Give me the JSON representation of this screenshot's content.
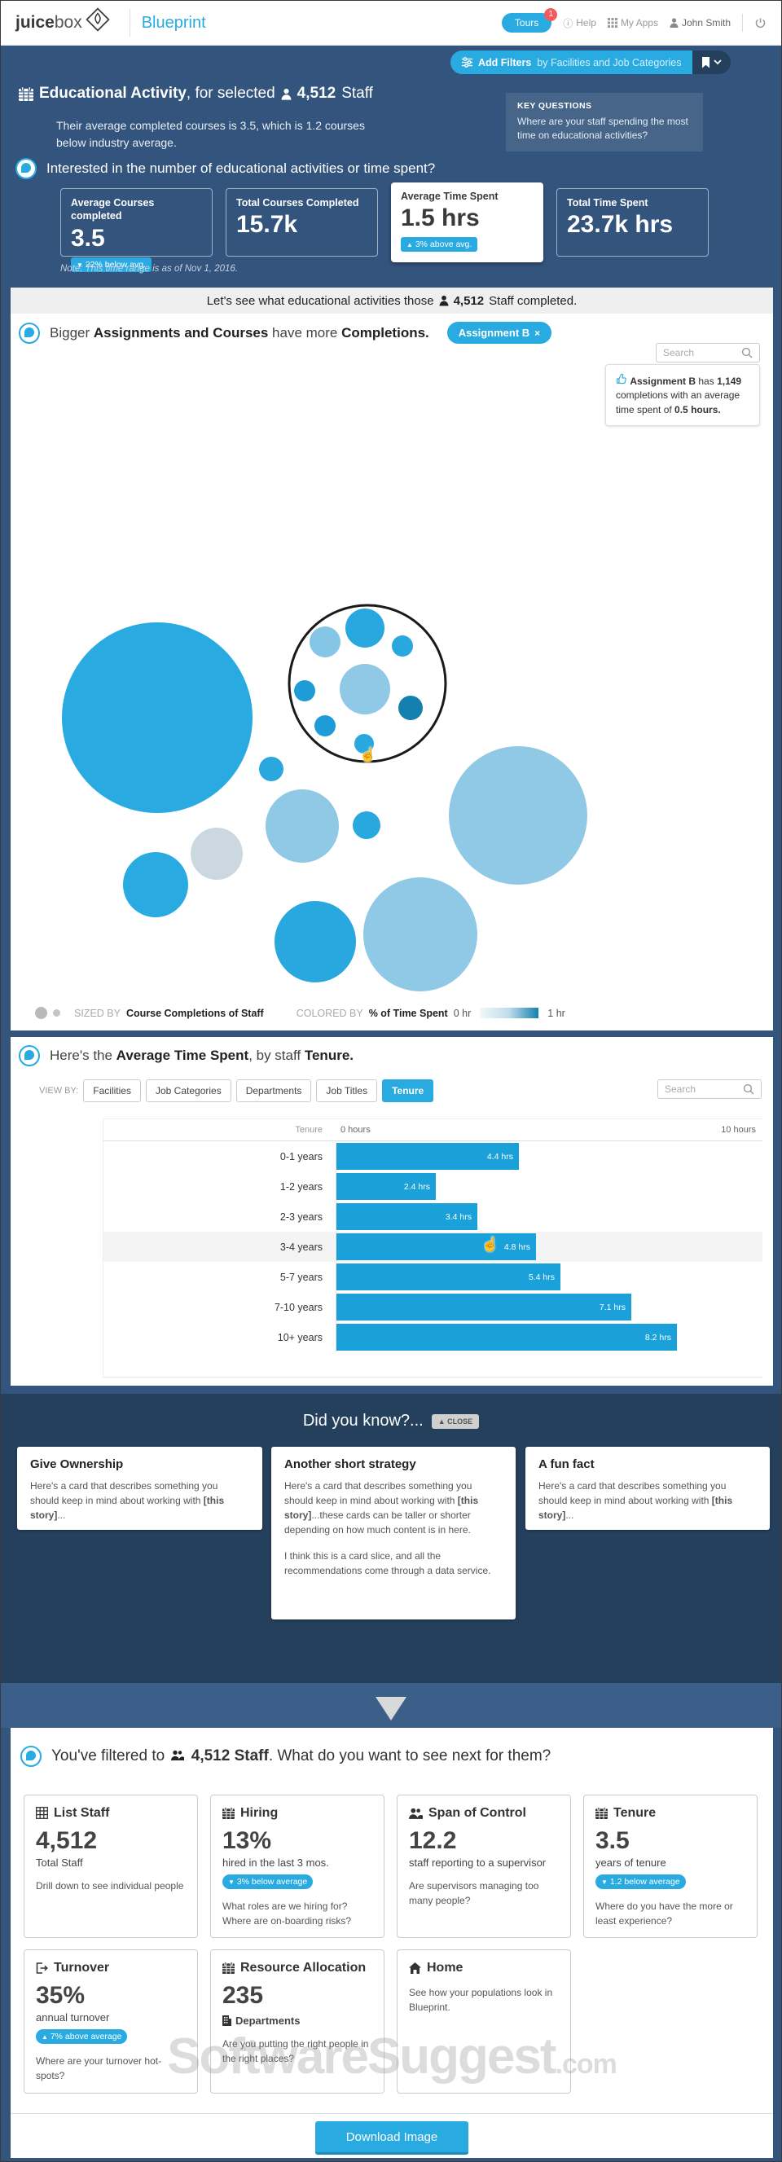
{
  "header": {
    "logo_bold": "juice",
    "logo_light": "box",
    "product": "Blueprint",
    "tours_label": "Tours",
    "tours_badge": "1",
    "help_label": "Help",
    "my_apps_label": "My Apps",
    "user_name": "John Smith"
  },
  "filter_bar": {
    "bold": "Add Filters",
    "rest": "by Facilities and Job Categories"
  },
  "hero": {
    "title_bold": "Educational Activity",
    "title_rest": ", for selected",
    "staff_count": "4,512",
    "staff_word": "Staff",
    "subtitle": "Their average completed courses is 3.5, which is 1.2 courses below industry average.",
    "key_questions_title": "KEY QUESTIONS",
    "key_questions_body": "Where are your staff spending the most time on educational activities?"
  },
  "kpi": {
    "question": "Interested in the number of educational activities or time spent?",
    "note": "Note: This time range is as of Nov 1, 2016.",
    "cards": [
      {
        "label": "Average Courses completed",
        "value": "3.5",
        "badge_arrow": "▼",
        "badge_text": "22% below avg.",
        "selected": false
      },
      {
        "label": "Total Courses Completed",
        "value": "15.7k",
        "badge_arrow": "",
        "badge_text": "",
        "selected": false
      },
      {
        "label": "Average Time Spent",
        "value": "1.5 hrs",
        "badge_arrow": "▲",
        "badge_text": "3% above avg.",
        "selected": true
      },
      {
        "label": "Total Time Spent",
        "value": "23.7k hrs",
        "badge_arrow": "",
        "badge_text": "",
        "selected": false
      }
    ]
  },
  "banner": {
    "pre": "Let's see what educational activities those",
    "count": "4,512",
    "post": "Staff completed."
  },
  "bubble_section": {
    "title_pre": "Bigger ",
    "title_bold1": "Assignments and Courses",
    "title_mid": " have more ",
    "title_bold2": "Completions.",
    "chip_label": "Assignment B",
    "chip_close": "×",
    "search_placeholder": "Search",
    "tooltip": {
      "bold1": "Assignment B",
      "mid": "has",
      "count": "1,149",
      "body": "completions with an average time spent of",
      "bold2": "0.5 hours."
    },
    "legend": {
      "sized_by_label": "SIZED BY",
      "sized_by": "Course Completions of Staff",
      "colored_by_label": "COLORED BY",
      "colored_by": "% of Time Spent",
      "scale_min": "0 hr",
      "scale_max": "1 hr"
    },
    "chart_data": {
      "type": "bubble",
      "title": "Completions of educational activities, sized by course completions, colored by % of time spent (0-1 hr)",
      "highlighted": {
        "name": "Assignment B",
        "completions": 1149,
        "avg_time_hours": 0.5
      },
      "bubbles": [
        {
          "cx": 180,
          "cy": 496,
          "r": 117,
          "fill": "#29ABE2"
        },
        {
          "cx": 320,
          "cy": 559,
          "r": 15,
          "fill": "#29A8DF"
        },
        {
          "cx": 358,
          "cy": 629,
          "r": 45,
          "fill": "#8FC9E6"
        },
        {
          "cx": 437,
          "cy": 628,
          "r": 17,
          "fill": "#29A8DF"
        },
        {
          "cx": 623,
          "cy": 616,
          "r": 85,
          "fill": "#8FC9E6"
        },
        {
          "cx": 253,
          "cy": 663,
          "r": 32,
          "fill": "#CBD8E0"
        },
        {
          "cx": 178,
          "cy": 701,
          "r": 40,
          "fill": "#29ABE2"
        },
        {
          "cx": 374,
          "cy": 771,
          "r": 50,
          "fill": "#29A8DF"
        },
        {
          "cx": 503,
          "cy": 762,
          "r": 70,
          "fill": "#8FC9E6"
        },
        {
          "cx": 438,
          "cy": 454,
          "r": 96,
          "fill": "#FFFFFF",
          "stroke": "#1A1A1A",
          "stroke_width": 3
        },
        {
          "cx": 386,
          "cy": 403,
          "r": 19,
          "fill": "#85C6E6"
        },
        {
          "cx": 435,
          "cy": 386,
          "r": 24,
          "fill": "#29A8DF"
        },
        {
          "cx": 481,
          "cy": 408,
          "r": 13,
          "fill": "#29A8DF"
        },
        {
          "cx": 435,
          "cy": 461,
          "r": 31,
          "fill": "#8FC9E6"
        },
        {
          "cx": 361,
          "cy": 463,
          "r": 13,
          "fill": "#1E9CD8"
        },
        {
          "cx": 491,
          "cy": 484,
          "r": 15,
          "fill": "#1380AF"
        },
        {
          "cx": 386,
          "cy": 506,
          "r": 13,
          "fill": "#1E9CD8"
        },
        {
          "cx": 434,
          "cy": 528,
          "r": 12,
          "fill": "#29A8DF"
        }
      ]
    }
  },
  "tenure_section": {
    "title_pre": "Here's the ",
    "title_bold1": "Average Time Spent",
    "title_mid": ", by staff ",
    "title_bold2": "Tenure.",
    "view_by_label": "VIEW BY:",
    "view_by": [
      {
        "label": "Facilities",
        "selected": false
      },
      {
        "label": "Job Categories",
        "selected": false
      },
      {
        "label": "Departments",
        "selected": false
      },
      {
        "label": "Job Titles",
        "selected": false
      },
      {
        "label": "Tenure",
        "selected": true
      }
    ],
    "search_placeholder": "Search",
    "col_header": "Tenure",
    "chart_data": {
      "type": "bar",
      "categories": [
        "0-1 years",
        "1-2 years",
        "2-3 years",
        "3-4 years",
        "5-7 years",
        "7-10 years",
        "10+ years"
      ],
      "values": [
        4.4,
        2.4,
        3.4,
        4.8,
        5.4,
        7.1,
        8.2
      ],
      "labels": [
        "4.4 hrs",
        "2.4 hrs",
        "3.4 hrs",
        "4.8 hrs",
        "5.4 hrs",
        "7.1 hrs",
        "8.2 hrs"
      ],
      "xlabel": "hours",
      "xlim": [
        0,
        10
      ],
      "axis_min_label": "0 hours",
      "axis_max_label": "10 hours",
      "highlighted_index": 3,
      "bar_color": "#1BA1D9"
    }
  },
  "didyouknow": {
    "title": "Did you know?...",
    "close_arrow": "▲",
    "close_label": "CLOSE",
    "cards": [
      {
        "title": "Give Ownership",
        "body_pre": "Here's a card that describes something you should keep in mind about working with ",
        "body_bold": "[this story]",
        "body_post": "...",
        "para2": ""
      },
      {
        "title": "Another short strategy",
        "body_pre": "Here's a card that describes something you should keep in mind about working with ",
        "body_bold": "[this story]",
        "body_post": "...these cards can be taller or shorter depending on how much content is in here.",
        "para2": "I think this is a card slice, and all the recommendations come through a data service."
      },
      {
        "title": "A fun fact",
        "body_pre": "Here's a card that describes something you should keep in mind about working with ",
        "body_bold": "[this story]",
        "body_post": "...",
        "para2": ""
      }
    ]
  },
  "next": {
    "q_pre": "You've filtered to",
    "q_bold": "4,512 Staff",
    "q_post": ". What do you want to see next for them?",
    "tiles": [
      {
        "icon": "table-icon",
        "title": "List Staff",
        "value": "4,512",
        "sub": "Total Staff",
        "badge_arrow": "",
        "badge_text": "",
        "desc": "Drill down to see individual people"
      },
      {
        "icon": "calendar-icon",
        "title": "Hiring",
        "value": "13%",
        "sub": "hired in the last 3 mos.",
        "badge_arrow": "▼",
        "badge_text": "3% below average",
        "desc": "What roles are we hiring for? Where are on-boarding risks?"
      },
      {
        "icon": "people-icon",
        "title": "Span of Control",
        "value": "12.2",
        "sub": "staff reporting to a supervisor",
        "badge_arrow": "",
        "badge_text": "",
        "desc": "Are supervisors managing too many people?"
      },
      {
        "icon": "calendar-icon",
        "title": "Tenure",
        "value": "3.5",
        "sub": "years of tenure",
        "badge_arrow": "▼",
        "badge_text": "1.2 below average",
        "desc": "Where do you have the more or least experience?"
      },
      {
        "icon": "logout-icon",
        "title": "Turnover",
        "value": "35%",
        "sub": "annual turnover",
        "badge_arrow": "▲",
        "badge_text": "7% above average",
        "desc": "Where are your turnover hot-spots?"
      },
      {
        "icon": "calendar-icon",
        "title": "Resource Allocation",
        "value": "235",
        "sub": "Departments",
        "badge_arrow": "",
        "badge_text": "",
        "desc": "Are you putting the right people in the right places?"
      },
      {
        "icon": "home-icon",
        "title": "Home",
        "value": "",
        "sub": "",
        "badge_arrow": "",
        "badge_text": "",
        "desc": "See how your populations look in Blueprint."
      }
    ]
  },
  "watermark": {
    "main": "SoftwareSuggest",
    "tld": ".com"
  },
  "footer": {
    "download_label": "Download Image"
  },
  "colors": {
    "accent": "#29ABE2",
    "navy": "#33547C",
    "dark_navy": "#24405C",
    "band": "#3B5F88",
    "bar": "#1BA1D9"
  }
}
